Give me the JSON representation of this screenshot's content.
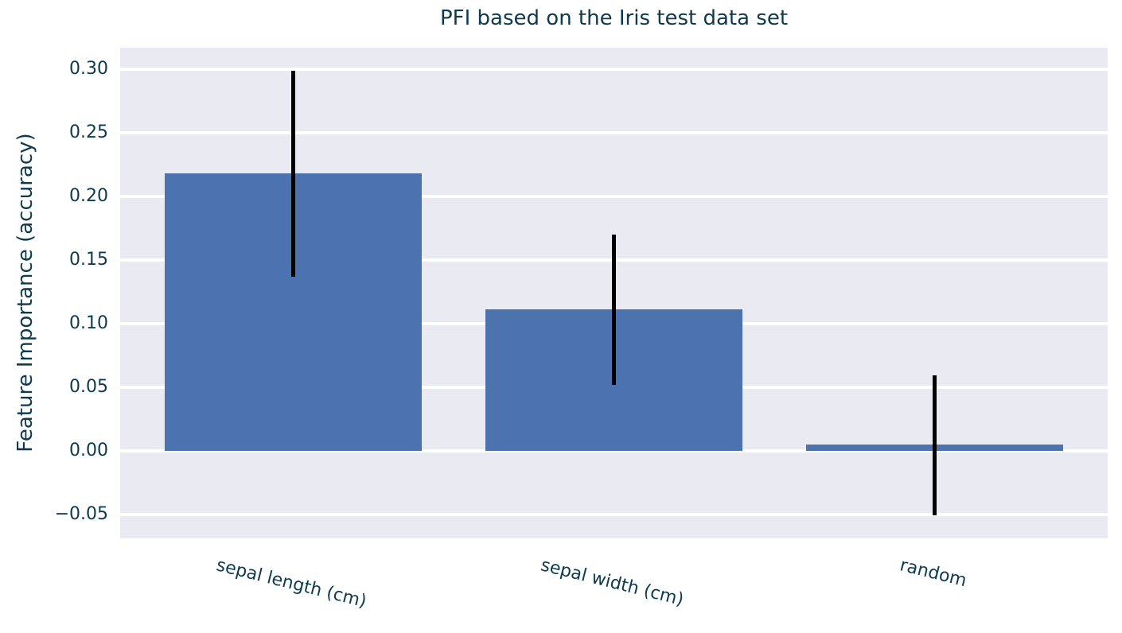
{
  "colors": {
    "bar": "#4c72b0",
    "error_bar": "#000000",
    "plot_bg": "#eaeaf2",
    "gridline": "#ffffff",
    "text": "#0d3a4e",
    "figure_bg": "#ffffff"
  },
  "chart_data": {
    "type": "bar",
    "title": "PFI based on the Iris test data set",
    "xlabel": "",
    "ylabel": "Feature Importance (accuracy)",
    "categories": [
      "sepal length (cm)",
      "sepal width (cm)",
      "random"
    ],
    "values": [
      0.218,
      0.111,
      0.005
    ],
    "error_low": [
      0.137,
      0.052,
      -0.051
    ],
    "error_high": [
      0.299,
      0.17,
      0.059
    ],
    "yticks": [
      -0.05,
      0.0,
      0.05,
      0.1,
      0.15,
      0.2,
      0.25,
      0.3
    ],
    "ytick_labels": [
      "−0.05",
      "0.00",
      "0.05",
      "0.10",
      "0.15",
      "0.20",
      "0.25",
      "0.30"
    ],
    "ylim": [
      -0.069,
      0.317
    ],
    "xlim": [
      -0.54,
      2.54
    ],
    "bar_width": 0.8,
    "grid": "horizontal-white",
    "legend": "none",
    "xtick_rotation_deg": 14,
    "error_bar_style": "vertical-line-no-caps"
  }
}
